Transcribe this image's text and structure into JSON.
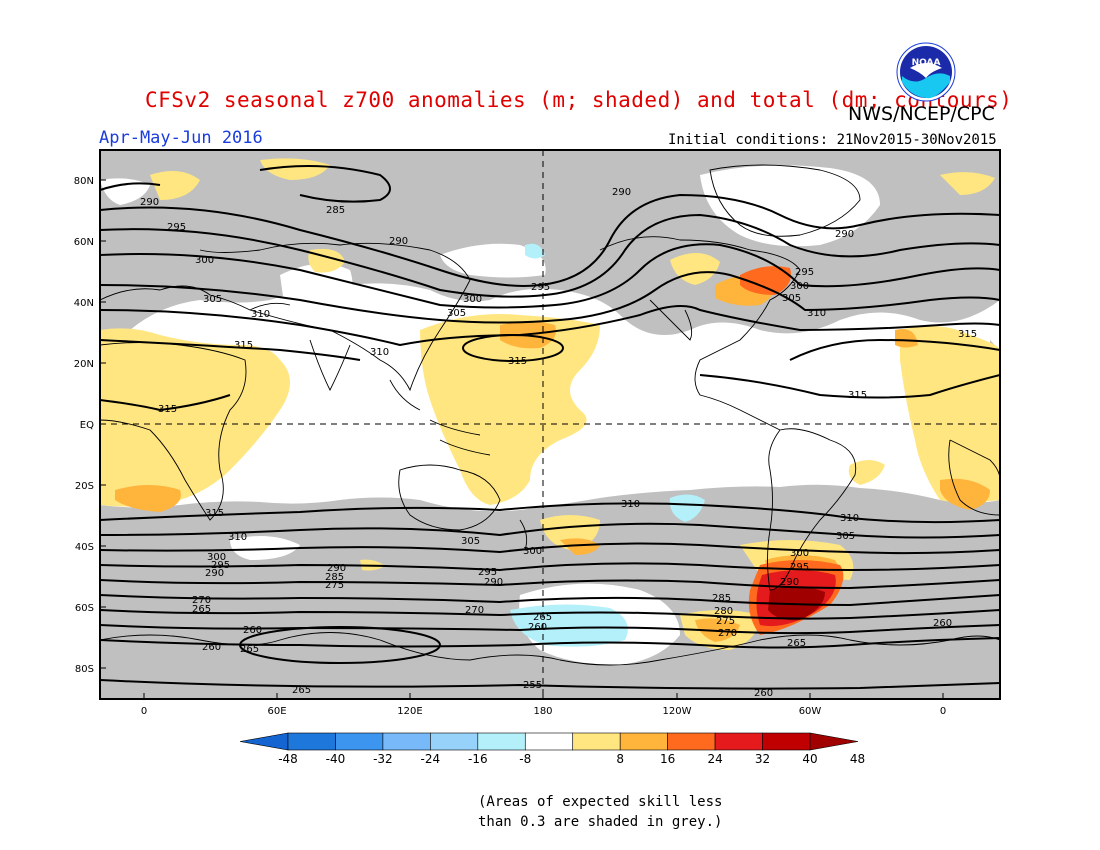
{
  "header": {
    "title": "CFSv2 seasonal z700 anomalies (m; shaded) and total (dm; contours)",
    "agency": "NWS/NCEP/CPC",
    "season": "Apr-May-Jun 2016",
    "initial_conditions": "Initial conditions: 21Nov2015-30Nov2015",
    "logo_text": "NOAA"
  },
  "map": {
    "lat_labels": [
      "80N",
      "60N",
      "40N",
      "20N",
      "EQ",
      "20S",
      "40S",
      "60S",
      "80S"
    ],
    "lon_labels": [
      "0",
      "60E",
      "120E",
      "180",
      "120W",
      "60W",
      "0"
    ],
    "contour_labels": [
      "290",
      "285",
      "290",
      "295",
      "300",
      "305",
      "310",
      "315",
      "295",
      "300",
      "305",
      "310",
      "315",
      "315",
      "315",
      "310",
      "310",
      "305",
      "300",
      "295",
      "290",
      "285",
      "280",
      "275",
      "270",
      "265",
      "260",
      "255",
      "265",
      "270",
      "275",
      "280",
      "285",
      "290",
      "295",
      "300",
      "305",
      "310",
      "315",
      "310",
      "305",
      "300",
      "295",
      "290",
      "285",
      "270",
      "265",
      "260",
      "265",
      "260",
      "265",
      "260",
      "300",
      "305"
    ],
    "colors": {
      "grey_mask": "#c0c0c0",
      "pos1": "#ffe680",
      "pos2": "#ffb43c",
      "pos3": "#ff6a1e",
      "pos4": "#e41a1c",
      "pos5": "#a00000",
      "neg1": "#b4f0fa",
      "coast": "#000000"
    }
  },
  "colorbar": {
    "ticks": [
      "-48",
      "-40",
      "-32",
      "-24",
      "-16",
      "-8",
      "8",
      "16",
      "24",
      "32",
      "40",
      "48"
    ],
    "colors": [
      "#1464d2",
      "#1e78dc",
      "#3c96f0",
      "#78b9fa",
      "#96d2fa",
      "#b4f0fa",
      "#ffffff",
      "#ffe680",
      "#ffb43c",
      "#ff6a1e",
      "#e41a1c",
      "#c00000",
      "#a00000"
    ]
  },
  "note": {
    "line1": "(Areas of expected skill less",
    "line2": "than 0.3 are shaded in grey.)"
  }
}
